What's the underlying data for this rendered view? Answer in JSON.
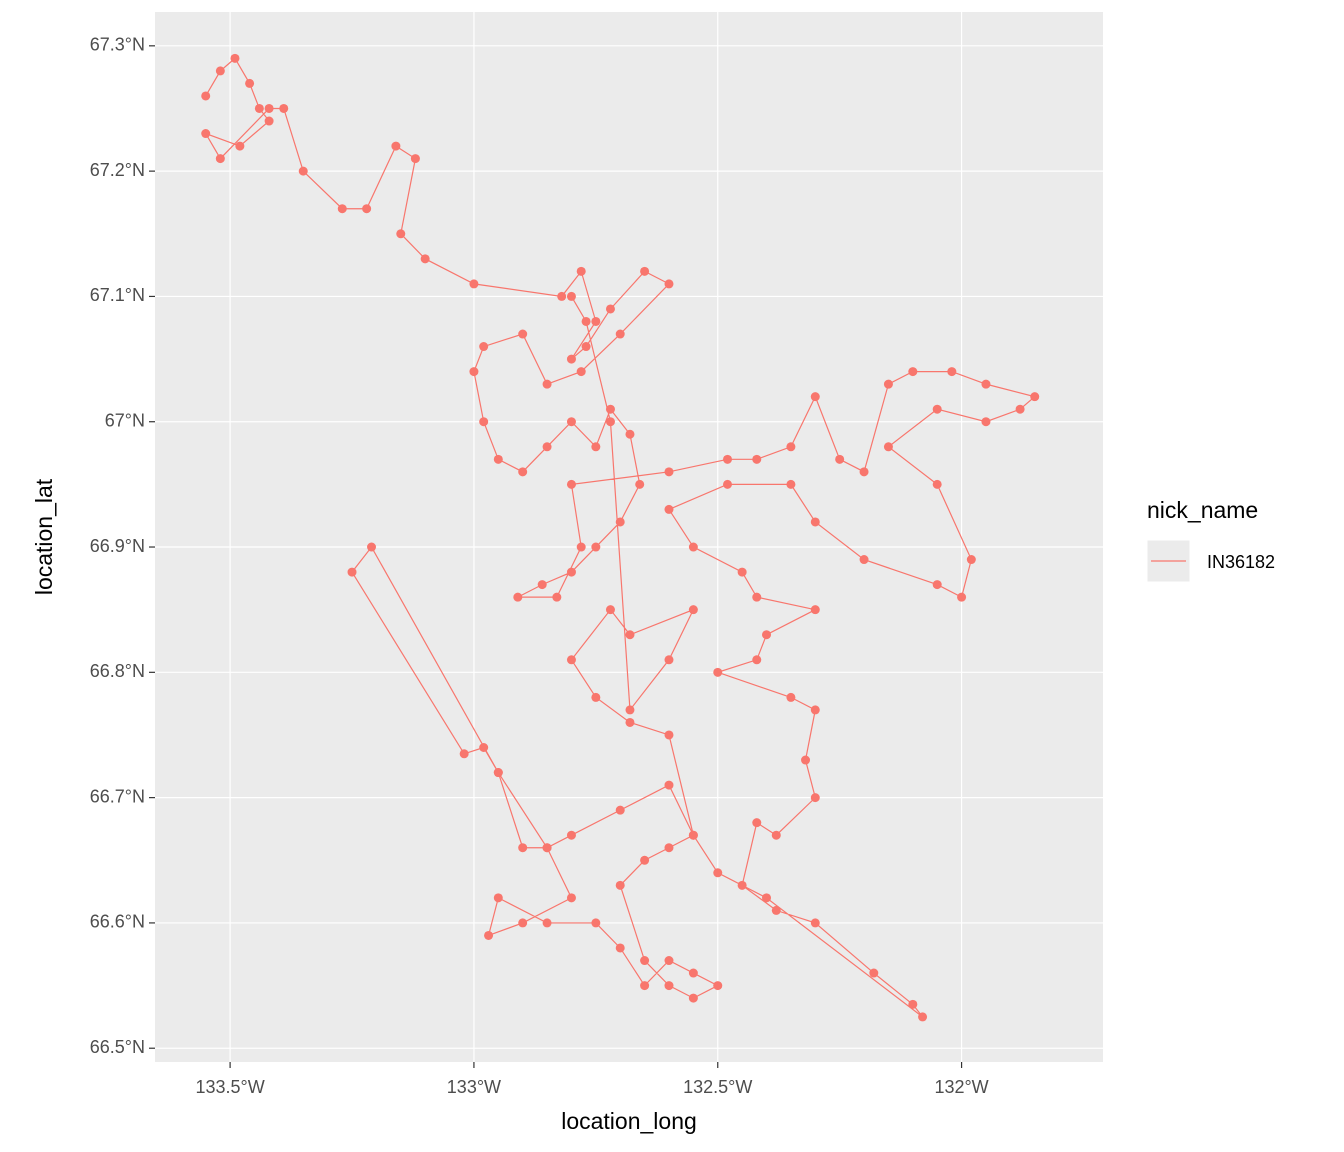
{
  "chart_data": {
    "type": "line",
    "x_label": "location_long",
    "y_label": "location_lat",
    "legend_title": "nick_name",
    "legend_position": "right",
    "grid": true,
    "points": true,
    "x": [
      -133.55,
      -133.52,
      -133.49,
      -133.46,
      -133.44,
      -133.42,
      -133.48,
      -133.55,
      -133.52,
      -133.42,
      -133.39,
      -133.35,
      -133.27,
      -133.22,
      -133.16,
      -133.12,
      -133.15,
      -133.1,
      -133.0,
      -132.82,
      -132.78,
      -132.75,
      -132.8,
      -132.77,
      -132.72,
      -132.65,
      -132.6,
      -132.7,
      -132.78,
      -132.85,
      -132.9,
      -132.98,
      -133.0,
      -132.98,
      -132.95,
      -132.9,
      -132.85,
      -132.8,
      -132.75,
      -132.72,
      -132.68,
      -132.66,
      -132.7,
      -132.75,
      -132.8,
      -132.86,
      -132.91,
      -132.83,
      -132.78,
      -132.8,
      -132.6,
      -132.48,
      -132.42,
      -132.35,
      -132.3,
      -132.25,
      -132.2,
      -132.15,
      -132.1,
      -132.02,
      -131.95,
      -131.85,
      -131.88,
      -131.95,
      -132.05,
      -132.15,
      -132.05,
      -131.98,
      -132.0,
      -132.05,
      -132.2,
      -132.3,
      -132.35,
      -132.48,
      -132.6,
      -132.55,
      -132.45,
      -132.42,
      -132.3,
      -132.4,
      -132.42,
      -132.5,
      -132.35,
      -132.3,
      -132.32,
      -132.3,
      -132.38,
      -132.42,
      -132.45,
      -132.38,
      -132.3,
      -132.18,
      -132.1,
      -132.08,
      -132.4,
      -132.5,
      -132.55,
      -132.6,
      -132.7,
      -132.8,
      -132.85,
      -132.9,
      -132.95,
      -132.98,
      -133.02,
      -133.25,
      -133.21,
      -132.95,
      -132.85,
      -132.8,
      -132.9,
      -132.97,
      -132.95,
      -132.85,
      -132.75,
      -132.7,
      -132.65,
      -132.6,
      -132.55,
      -132.5,
      -132.55,
      -132.6,
      -132.65,
      -132.7,
      -132.65,
      -132.6,
      -132.55,
      -132.6,
      -132.68,
      -132.75,
      -132.8,
      -132.72,
      -132.68,
      -132.55,
      -132.6,
      -132.68,
      -132.72,
      -132.77,
      -132.8
    ],
    "series": [
      {
        "name": "IN36182",
        "color": "#F8766D",
        "values": [
          67.26,
          67.28,
          67.29,
          67.27,
          67.25,
          67.24,
          67.22,
          67.23,
          67.21,
          67.25,
          67.25,
          67.2,
          67.17,
          67.17,
          67.22,
          67.21,
          67.15,
          67.13,
          67.11,
          67.1,
          67.12,
          67.08,
          67.05,
          67.06,
          67.09,
          67.12,
          67.11,
          67.07,
          67.04,
          67.03,
          67.07,
          67.06,
          67.04,
          67.0,
          66.97,
          66.96,
          66.98,
          67.0,
          66.98,
          67.01,
          66.99,
          66.95,
          66.92,
          66.9,
          66.88,
          66.87,
          66.86,
          66.86,
          66.9,
          66.95,
          66.96,
          66.97,
          66.97,
          66.98,
          67.02,
          66.97,
          66.96,
          67.03,
          67.04,
          67.04,
          67.03,
          67.02,
          67.01,
          67.0,
          67.01,
          66.98,
          66.95,
          66.89,
          66.86,
          66.87,
          66.89,
          66.92,
          66.95,
          66.95,
          66.93,
          66.9,
          66.88,
          66.86,
          66.85,
          66.83,
          66.81,
          66.8,
          66.78,
          66.77,
          66.73,
          66.7,
          66.67,
          66.68,
          66.63,
          66.61,
          66.6,
          66.56,
          66.535,
          66.525,
          66.62,
          66.64,
          66.67,
          66.71,
          66.69,
          66.67,
          66.66,
          66.66,
          66.72,
          66.74,
          66.735,
          66.88,
          66.9,
          66.72,
          66.66,
          66.62,
          66.6,
          66.59,
          66.62,
          66.6,
          66.6,
          66.58,
          66.55,
          66.57,
          66.56,
          66.55,
          66.54,
          66.55,
          66.57,
          66.63,
          66.65,
          66.66,
          66.67,
          66.75,
          66.76,
          66.78,
          66.81,
          66.85,
          66.83,
          66.85,
          66.81,
          66.77,
          67.0,
          67.08,
          67.1
        ]
      }
    ],
    "xlim": [
      -133.654,
      -131.71
    ],
    "xticks": [
      {
        "value": -133.5,
        "label": "133.5°W"
      },
      {
        "value": -133,
        "label": "133°W"
      },
      {
        "value": -132.5,
        "label": "132.5°W"
      },
      {
        "value": -132,
        "label": "132°W"
      }
    ],
    "ylim": [
      66.489,
      67.327
    ],
    "yticks": [
      {
        "value": 66.5,
        "label": "66.5°N"
      },
      {
        "value": 66.6,
        "label": "66.6°N"
      },
      {
        "value": 66.7,
        "label": "66.7°N"
      },
      {
        "value": 66.8,
        "label": "66.8°N"
      },
      {
        "value": 66.9,
        "label": "66.9°N"
      },
      {
        "value": 67,
        "label": "67°N"
      },
      {
        "value": 67.1,
        "label": "67.1°N"
      },
      {
        "value": 67.2,
        "label": "67.2°N"
      },
      {
        "value": 67.3,
        "label": "67.3°N"
      }
    ]
  }
}
